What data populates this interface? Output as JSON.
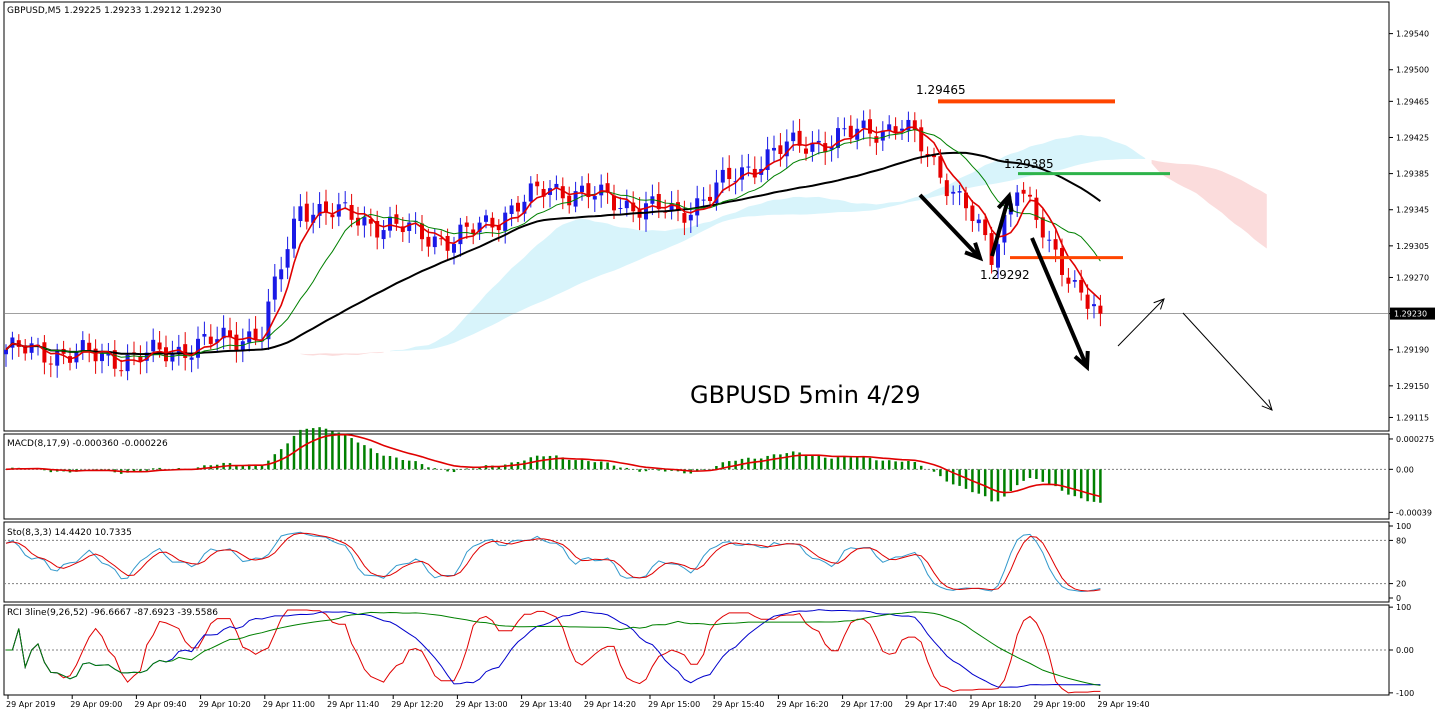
{
  "chart_data": {
    "type": "candlestick",
    "title": "GBPUSD 5min 4/29",
    "symbol_label": "GBPUSD,M5  1.29225 1.29233 1.29212 1.29230",
    "current_price_label": "1.29230",
    "colors": {
      "bull": "#1a1ae6",
      "bear": "#e60000",
      "ma_fast": "#e00000",
      "ma_mid": "#008000",
      "ma_slow": "#000000",
      "kumo_bull": "#d8f4fb",
      "kumo_bear": "#fbdcdc",
      "macd_hist": "#008000",
      "macd_signal": "#e00000",
      "stoch_k": "#3399cc",
      "stoch_d": "#e00000",
      "rci_short": "#e00000",
      "rci_mid": "#0000cc",
      "rci_long": "#008000",
      "level_red": "#ff4500",
      "level_green": "#2db34a"
    },
    "price_axis": {
      "ylim": [
        1.291,
        1.29575
      ],
      "ticks": [
        "1.29540",
        "1.29500",
        "1.29465",
        "1.29425",
        "1.29385",
        "1.29345",
        "1.29305",
        "1.29270",
        "1.29230",
        "1.29190",
        "1.29150",
        "1.29115"
      ]
    },
    "time_axis": {
      "ticks": [
        "29 Apr 2019",
        "29 Apr 09:00",
        "29 Apr 09:40",
        "29 Apr 10:20",
        "29 Apr 11:00",
        "29 Apr 11:40",
        "29 Apr 12:20",
        "29 Apr 13:00",
        "29 Apr 13:40",
        "29 Apr 14:20",
        "29 Apr 15:00",
        "29 Apr 15:40",
        "29 Apr 16:20",
        "29 Apr 17:00",
        "29 Apr 17:40",
        "29 Apr 18:20",
        "29 Apr 19:00",
        "29 Apr 19:40"
      ]
    },
    "annotations": {
      "high_label": "1.29465",
      "high_value": 1.29465,
      "resistance_label": "1.29385",
      "resistance_value": 1.29385,
      "low_label": "1.29292",
      "low_value": 1.29292
    },
    "key_closes": [
      1.2919,
      1.2918,
      1.2921,
      1.2935,
      1.2931,
      1.2937,
      1.2934,
      1.2941,
      1.2944,
      1.2935,
      1.2929,
      1.2938,
      1.293,
      1.2923
    ],
    "macd": {
      "label": "MACD(8,17,9) -0.000360 -0.000226",
      "ticks": [
        "0.000275",
        "0.00",
        "-0.00039"
      ],
      "ylim": [
        -0.00045,
        0.00032
      ]
    },
    "stochastic": {
      "label": "Sto(8,3,3) 14.4420 10.7335",
      "ticks": [
        "100",
        "80",
        "20",
        "0"
      ],
      "ylim": [
        0,
        100
      ]
    },
    "rci": {
      "label": "RCI 3line(9,26,52) -96.6667 -87.6923 -39.5586",
      "ticks": [
        "100",
        "0.00",
        "-100"
      ],
      "ylim": [
        -105,
        105
      ]
    }
  }
}
